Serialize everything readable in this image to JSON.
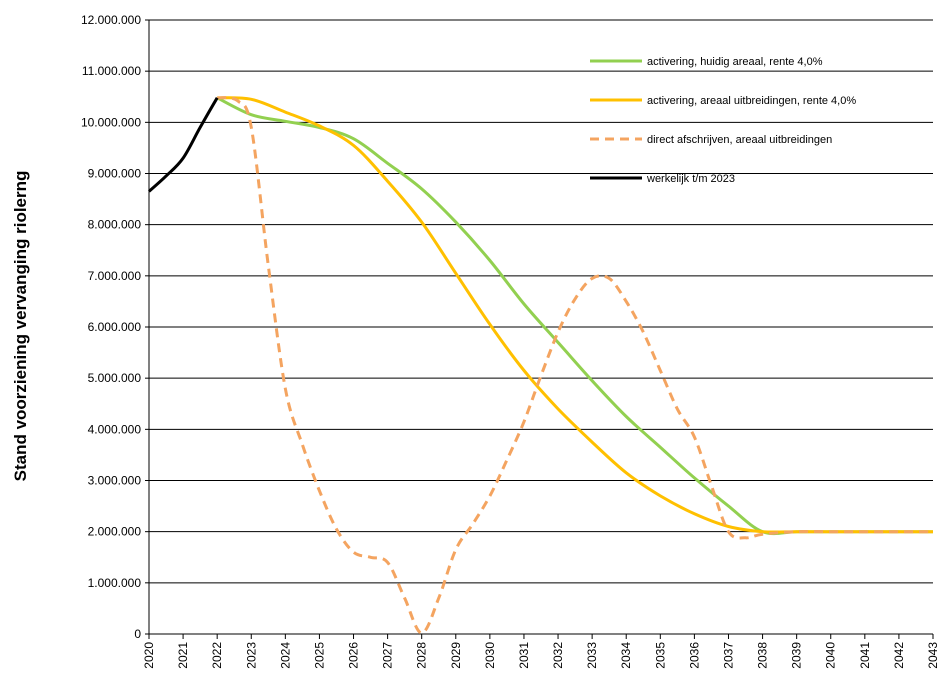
{
  "chart_data": {
    "type": "line",
    "title": "",
    "xlabel": "",
    "ylabel": "Stand voorziening vervanging riolerng",
    "xlim": [
      2020,
      2043
    ],
    "ylim": [
      0,
      12000000
    ],
    "grid": "horizontal",
    "legend_position": "top-right",
    "x_ticks": [
      "2020",
      "2021",
      "2022",
      "2023",
      "2024",
      "2025",
      "2026",
      "2027",
      "2028",
      "2029",
      "2030",
      "2031",
      "2032",
      "2033",
      "2034",
      "2035",
      "2036",
      "2037",
      "2038",
      "2039",
      "2040",
      "2041",
      "2042",
      "2043"
    ],
    "y_ticks": [
      "0",
      "1.000.000",
      "2.000.000",
      "3.000.000",
      "4.000.000",
      "5.000.000",
      "6.000.000",
      "7.000.000",
      "8.000.000",
      "9.000.000",
      "10.000.000",
      "11.000.000",
      "12.000.000"
    ],
    "y_tick_values": [
      0,
      1000000,
      2000000,
      3000000,
      4000000,
      5000000,
      6000000,
      7000000,
      8000000,
      9000000,
      10000000,
      11000000,
      12000000
    ],
    "series": [
      {
        "name": "activering, huidig areaal, rente 4,0%",
        "color": "#92d050",
        "dash": "solid",
        "points": [
          [
            2022,
            10480000
          ],
          [
            2023,
            10150000
          ],
          [
            2024,
            10020000
          ],
          [
            2025,
            9900000
          ],
          [
            2026,
            9680000
          ],
          [
            2027,
            9200000
          ],
          [
            2028,
            8700000
          ],
          [
            2029,
            8050000
          ],
          [
            2030,
            7300000
          ],
          [
            2031,
            6450000
          ],
          [
            2032,
            5700000
          ],
          [
            2033,
            4950000
          ],
          [
            2034,
            4250000
          ],
          [
            2035,
            3650000
          ],
          [
            2036,
            3050000
          ],
          [
            2037,
            2500000
          ],
          [
            2038,
            2000000
          ],
          [
            2039,
            2000000
          ],
          [
            2040,
            2000000
          ],
          [
            2041,
            2000000
          ],
          [
            2042,
            2000000
          ],
          [
            2043,
            2000000
          ]
        ]
      },
      {
        "name": "activering, areaal uitbreidingen, rente 4,0%",
        "color": "#ffc000",
        "dash": "solid",
        "points": [
          [
            2022,
            10480000
          ],
          [
            2023,
            10450000
          ],
          [
            2024,
            10200000
          ],
          [
            2025,
            9930000
          ],
          [
            2026,
            9550000
          ],
          [
            2027,
            8850000
          ],
          [
            2028,
            8050000
          ],
          [
            2029,
            7050000
          ],
          [
            2030,
            6050000
          ],
          [
            2031,
            5150000
          ],
          [
            2032,
            4400000
          ],
          [
            2033,
            3750000
          ],
          [
            2034,
            3150000
          ],
          [
            2035,
            2700000
          ],
          [
            2036,
            2350000
          ],
          [
            2037,
            2100000
          ],
          [
            2038,
            2000000
          ],
          [
            2039,
            2000000
          ],
          [
            2040,
            2000000
          ],
          [
            2041,
            2000000
          ],
          [
            2042,
            2000000
          ],
          [
            2043,
            2000000
          ]
        ]
      },
      {
        "name": "direct afschrijven, areaal uitbreidingen",
        "color": "#f4a460",
        "dash": "dashed",
        "points": [
          [
            2022,
            10480000
          ],
          [
            2022.6,
            10420000
          ],
          [
            2023,
            9900000
          ],
          [
            2023.5,
            7200000
          ],
          [
            2024,
            4800000
          ],
          [
            2024.5,
            3700000
          ],
          [
            2025,
            2800000
          ],
          [
            2025.5,
            2050000
          ],
          [
            2026,
            1600000
          ],
          [
            2026.5,
            1500000
          ],
          [
            2027,
            1400000
          ],
          [
            2027.5,
            700000
          ],
          [
            2028,
            20000
          ],
          [
            2028.5,
            700000
          ],
          [
            2029,
            1650000
          ],
          [
            2029.5,
            2150000
          ],
          [
            2030,
            2700000
          ],
          [
            2030.5,
            3400000
          ],
          [
            2031,
            4150000
          ],
          [
            2031.5,
            5050000
          ],
          [
            2032,
            5900000
          ],
          [
            2032.5,
            6550000
          ],
          [
            2033,
            6950000
          ],
          [
            2033.5,
            6950000
          ],
          [
            2034,
            6500000
          ],
          [
            2034.5,
            5900000
          ],
          [
            2035,
            5150000
          ],
          [
            2035.5,
            4400000
          ],
          [
            2036,
            3850000
          ],
          [
            2036.5,
            2900000
          ],
          [
            2037,
            2000000
          ],
          [
            2037.5,
            1880000
          ],
          [
            2038,
            1950000
          ],
          [
            2039,
            2000000
          ],
          [
            2040,
            2000000
          ],
          [
            2041,
            2000000
          ],
          [
            2042,
            2000000
          ],
          [
            2043,
            2000000
          ]
        ]
      },
      {
        "name": "werkelijk t/m 2023",
        "color": "#000000",
        "dash": "solid",
        "points": [
          [
            2020,
            8650000
          ],
          [
            2020.5,
            8950000
          ],
          [
            2021,
            9300000
          ],
          [
            2021.5,
            9900000
          ],
          [
            2022,
            10480000
          ]
        ]
      }
    ]
  }
}
